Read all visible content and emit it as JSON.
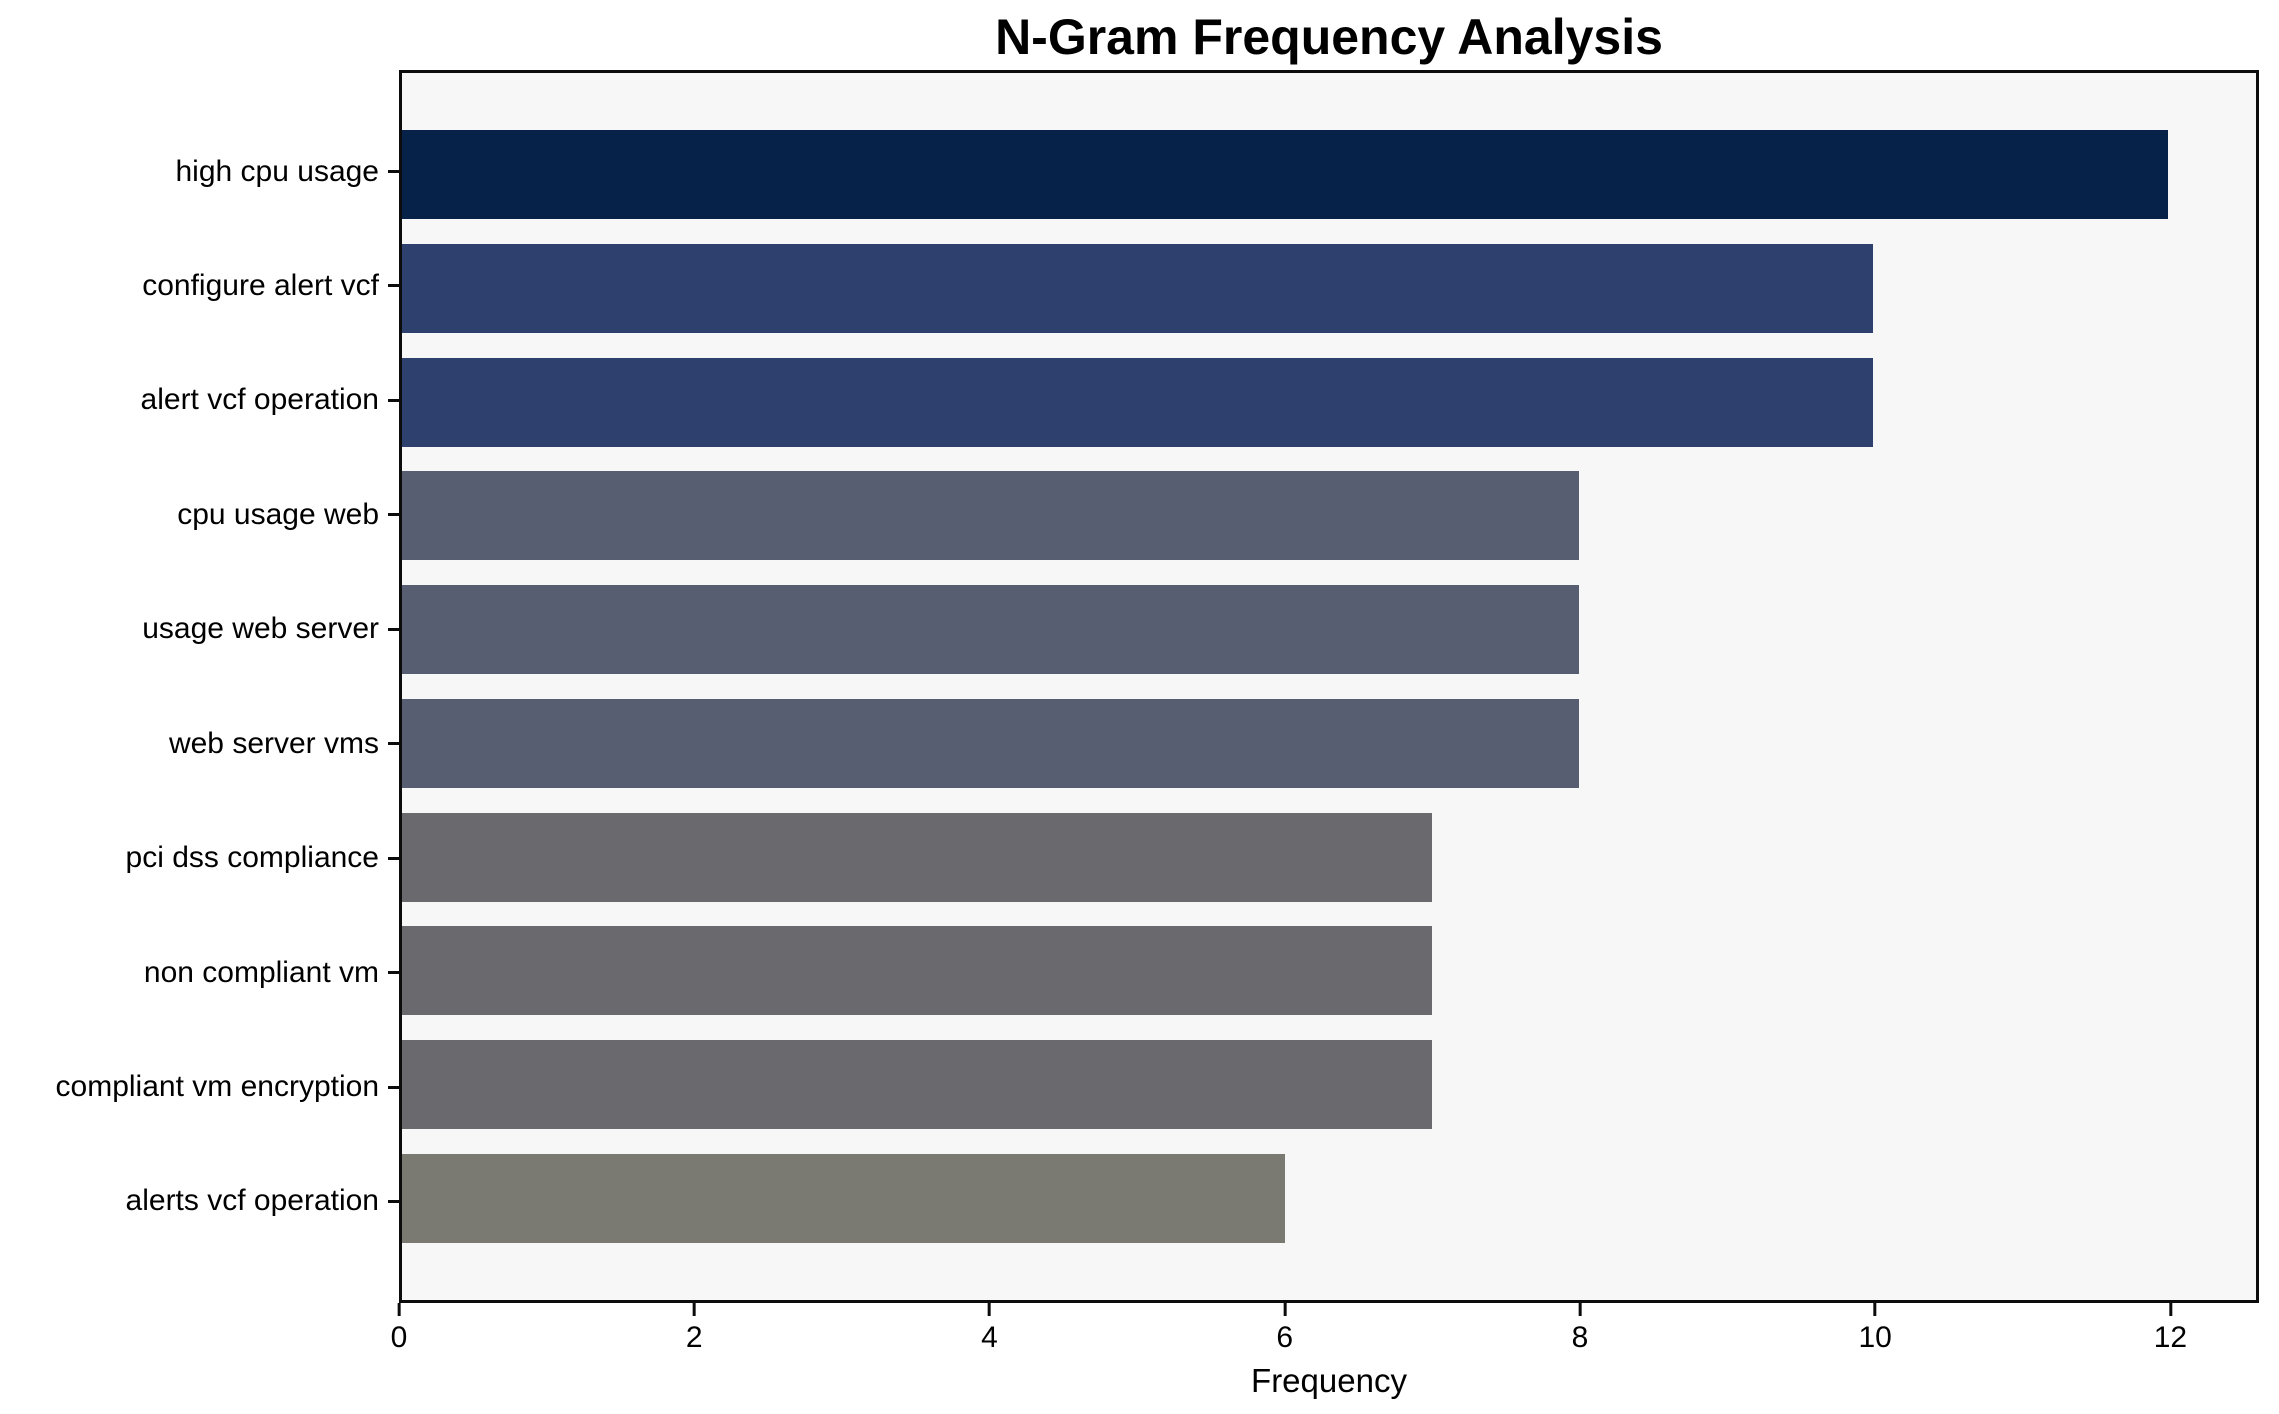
{
  "chart_data": {
    "type": "bar",
    "orientation": "horizontal",
    "title": "N-Gram Frequency Analysis",
    "xlabel": "Frequency",
    "ylabel": "",
    "categories": [
      "high cpu usage",
      "configure alert vcf",
      "alert vcf operation",
      "cpu usage web",
      "usage web server",
      "web server vms",
      "pci dss compliance",
      "non compliant vm",
      "compliant vm encryption",
      "alerts vcf operation"
    ],
    "values": [
      12,
      10,
      10,
      8,
      8,
      8,
      7,
      7,
      7,
      6
    ],
    "bar_colors": [
      "#072249",
      "#2e406d",
      "#2e406d",
      "#575e71",
      "#575e71",
      "#575e71",
      "#6a6a6e",
      "#6a6a6e",
      "#6a6a6e",
      "#7b7a72"
    ],
    "x_ticks": [
      0,
      2,
      4,
      6,
      8,
      10,
      12
    ],
    "xlim": [
      0,
      12.6
    ],
    "grid": false,
    "legend": "none",
    "plot_background": "#f7f7f7",
    "spine_color": "#0c0c0c"
  }
}
